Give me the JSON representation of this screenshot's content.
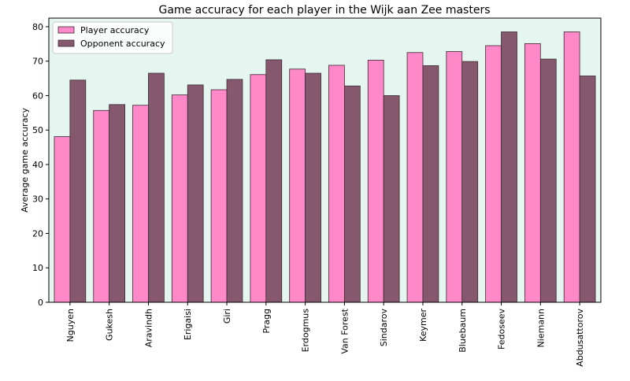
{
  "chart_data": {
    "type": "bar",
    "title": "Game accuracy for each player in the Wijk aan Zee masters",
    "xlabel": "",
    "ylabel": "Average game accuracy",
    "ylim": [
      0,
      82.5
    ],
    "yticks": [
      0,
      10,
      20,
      30,
      40,
      50,
      60,
      70,
      80
    ],
    "grid": false,
    "legend_position": "top-left",
    "background_color": "#e5f5ef",
    "categories": [
      "Nguyen",
      "Gukesh",
      "Aravindh",
      "Erigaisi",
      "Giri",
      "Pragg",
      "Erdogmus",
      "Van Forest",
      "Sindarov",
      "Keymer",
      "Bluebaum",
      "Fedoseev",
      "Niemann",
      "Abdusattorov"
    ],
    "series": [
      {
        "name": "Player accuracy",
        "color": "#ff88c8",
        "values": [
          48.1,
          55.7,
          57.2,
          60.2,
          61.7,
          66.1,
          67.7,
          68.8,
          70.3,
          72.5,
          72.8,
          74.5,
          75.1,
          78.5
        ]
      },
      {
        "name": "Opponent accuracy",
        "color": "#85586e",
        "values": [
          64.5,
          57.4,
          66.5,
          63.1,
          64.7,
          70.4,
          66.5,
          62.8,
          60.0,
          68.7,
          69.9,
          78.5,
          70.6,
          65.7
        ]
      }
    ]
  }
}
